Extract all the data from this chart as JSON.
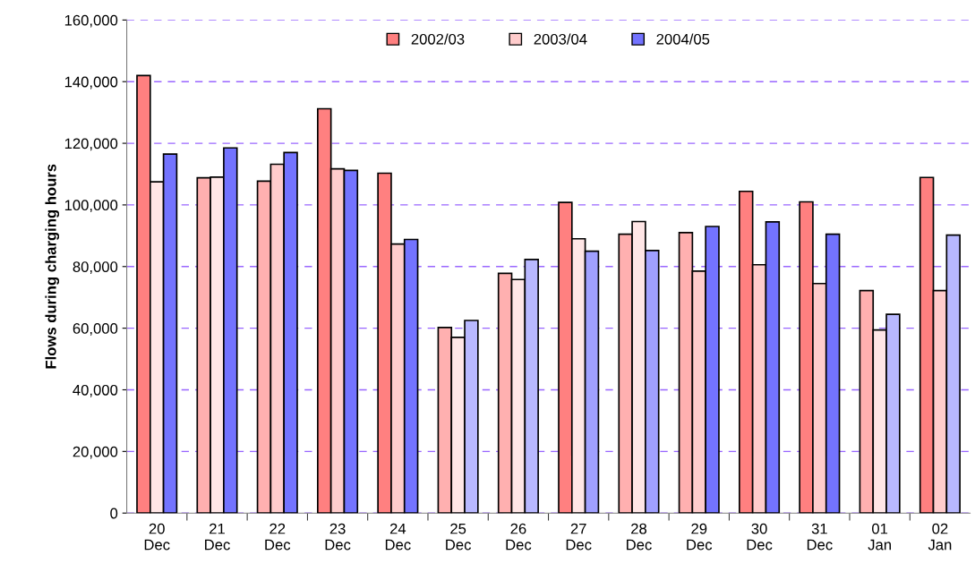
{
  "chart_data": {
    "type": "bar",
    "ylabel": "Flows during charging hours",
    "categories": [
      "20\nDec",
      "21\nDec",
      "22\nDec",
      "23\nDec",
      "24\nDec",
      "25\nDec",
      "26\nDec",
      "27\nDec",
      "28\nDec",
      "29\nDec",
      "30\nDec",
      "31\nDec",
      "01\nJan",
      "02\nJan"
    ],
    "series": [
      {
        "name": "2002/03",
        "color": "#ff8080",
        "values": [
          142000,
          108800,
          107700,
          131200,
          110300,
          60200,
          77800,
          100800,
          90500,
          91000,
          104400,
          101000,
          72200,
          108900
        ],
        "colors": [
          "#ff8080",
          "#ffb0b0",
          "#ffb0b0",
          "#ff8080",
          "#ff8080",
          "#ffb0b0",
          "#ffb0b0",
          "#ff8080",
          "#ffb0b0",
          "#ffb0b0",
          "#ff8080",
          "#ff8080",
          "#ffb0b0",
          "#ff8080"
        ]
      },
      {
        "name": "2003/04",
        "color": "#ffcccc",
        "values": [
          107500,
          109000,
          113200,
          111700,
          87300,
          57000,
          75800,
          89000,
          94600,
          78500,
          80600,
          74500,
          59400,
          72200
        ],
        "colors": [
          "#ffe6e6",
          "#ffe6e6",
          "#ffcccc",
          "#ffcccc",
          "#ffcccc",
          "#ffe6e6",
          "#ffe6e6",
          "#ffe6e6",
          "#ffe6e6",
          "#ffcccc",
          "#ffcccc",
          "#ffcccc",
          "#ffe6e6",
          "#ffcccc"
        ]
      },
      {
        "name": "2004/05",
        "color": "#7373ff",
        "values": [
          116500,
          118500,
          117000,
          111200,
          88800,
          62500,
          82300,
          85000,
          85200,
          93000,
          94500,
          90500,
          64500,
          90200
        ],
        "colors": [
          "#7373ff",
          "#7373ff",
          "#7373ff",
          "#7373ff",
          "#7373ff",
          "#b8b8ff",
          "#b8b8ff",
          "#a0a0ff",
          "#a0a0ff",
          "#7373ff",
          "#7373ff",
          "#7373ff",
          "#b8b8ff",
          "#b8b8ff"
        ]
      }
    ],
    "ylim": [
      0,
      160000
    ],
    "yticks": [
      {
        "value": 0,
        "label": "0"
      },
      {
        "value": 20000,
        "label": "20,000"
      },
      {
        "value": 40000,
        "label": "40,000"
      },
      {
        "value": 60000,
        "label": "60,000"
      },
      {
        "value": 80000,
        "label": "80,000"
      },
      {
        "value": 100000,
        "label": "100,000"
      },
      {
        "value": 120000,
        "label": "120,000"
      },
      {
        "value": 140000,
        "label": "140,000"
      },
      {
        "value": 160000,
        "label": "160,000"
      }
    ],
    "grid": "y",
    "legend": "top"
  }
}
